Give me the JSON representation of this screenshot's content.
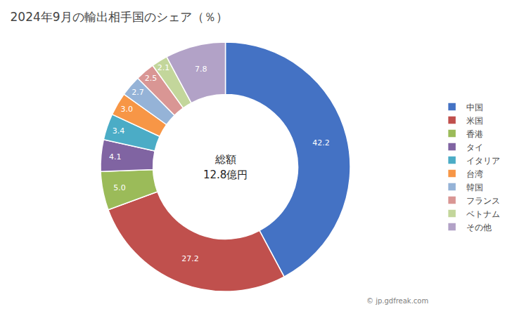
{
  "chart_data": {
    "type": "pie",
    "title": "2024年9月の輸出相手国のシェア（％）",
    "center_text": [
      "総額",
      "12.8億円"
    ],
    "categories": [
      "中国",
      "米国",
      "香港",
      "タイ",
      "イタリア",
      "台湾",
      "韓国",
      "フランス",
      "ベトナム",
      "その他"
    ],
    "values": [
      42.2,
      27.2,
      5.0,
      4.1,
      3.4,
      3.0,
      2.7,
      2.5,
      2.1,
      7.8
    ],
    "value_labels": [
      "42.2",
      "27.2",
      "5.0",
      "4.1",
      "3.4",
      "3.0",
      "2.7",
      "2.5",
      "2.1",
      "7.8"
    ],
    "colors": [
      "#4472C4",
      "#C0504D",
      "#9BBB59",
      "#8064A2",
      "#4BACC6",
      "#F79646",
      "#95B3D7",
      "#D99694",
      "#C3D69B",
      "#B2A2C7"
    ],
    "data_labels": true,
    "legend": "right",
    "watermark": "© jp.gdfreak.com"
  }
}
